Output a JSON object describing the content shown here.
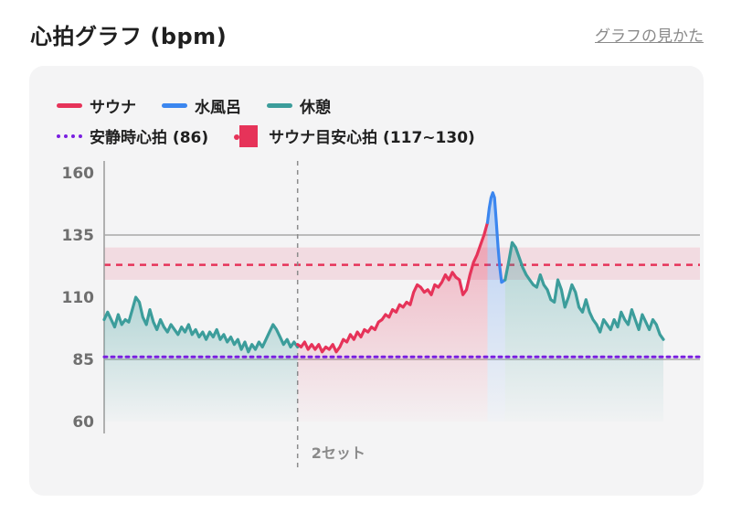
{
  "header": {
    "title": "心拍グラフ (bpm)",
    "help_link": "グラフの見かた"
  },
  "colors": {
    "sauna": "#e63359",
    "cold_bath": "#3b86ef",
    "rest": "#3c9d9b",
    "resting_hr": "#7a1fe0",
    "target_band": "#e63359"
  },
  "legend": {
    "sauna": "サウナ",
    "cold_bath": "水風呂",
    "rest": "休憩",
    "resting_hr": "安静時心拍 (86)",
    "target": "サウナ目安心拍 (117~130)"
  },
  "chart_data": {
    "type": "line",
    "y_ticks": [
      "160",
      "135",
      "110",
      "85",
      "60"
    ],
    "ylim": [
      60,
      160
    ],
    "resting_hr": 86,
    "target_band": [
      117,
      130
    ],
    "target_midline": 123,
    "marker_label": "2セット",
    "series": [
      {
        "name": "休憩",
        "key": "rest",
        "points": [
          [
            0,
            101
          ],
          [
            2,
            104
          ],
          [
            4,
            101
          ],
          [
            6,
            98
          ],
          [
            8,
            103
          ],
          [
            10,
            99
          ],
          [
            12,
            101
          ],
          [
            14,
            100
          ],
          [
            16,
            105
          ],
          [
            18,
            110
          ],
          [
            20,
            108
          ],
          [
            22,
            102
          ],
          [
            24,
            99
          ],
          [
            26,
            105
          ],
          [
            28,
            100
          ],
          [
            30,
            97
          ],
          [
            32,
            101
          ],
          [
            34,
            98
          ],
          [
            36,
            96
          ],
          [
            38,
            99
          ],
          [
            40,
            97
          ],
          [
            42,
            95
          ],
          [
            44,
            98
          ],
          [
            46,
            96
          ],
          [
            48,
            99
          ],
          [
            50,
            95
          ],
          [
            52,
            97
          ],
          [
            54,
            94
          ],
          [
            56,
            96
          ],
          [
            58,
            93
          ],
          [
            60,
            96
          ],
          [
            62,
            94
          ],
          [
            64,
            97
          ],
          [
            66,
            93
          ],
          [
            68,
            95
          ],
          [
            70,
            92
          ],
          [
            72,
            94
          ],
          [
            74,
            91
          ],
          [
            76,
            93
          ],
          [
            78,
            89
          ],
          [
            80,
            92
          ],
          [
            82,
            88
          ],
          [
            84,
            91
          ],
          [
            86,
            89
          ],
          [
            88,
            92
          ],
          [
            90,
            90
          ],
          [
            92,
            93
          ],
          [
            94,
            96
          ],
          [
            96,
            99
          ],
          [
            98,
            97
          ],
          [
            100,
            94
          ],
          [
            102,
            91
          ],
          [
            104,
            93
          ],
          [
            106,
            90
          ],
          [
            108,
            92
          ],
          [
            110,
            90
          ]
        ]
      },
      {
        "name": "サウナ",
        "key": "sauna",
        "points": [
          [
            110,
            91
          ],
          [
            112,
            90
          ],
          [
            114,
            92
          ],
          [
            116,
            89
          ],
          [
            118,
            91
          ],
          [
            120,
            89
          ],
          [
            122,
            91
          ],
          [
            124,
            88
          ],
          [
            126,
            90
          ],
          [
            128,
            89
          ],
          [
            130,
            91
          ],
          [
            132,
            88
          ],
          [
            134,
            90
          ],
          [
            136,
            93
          ],
          [
            138,
            92
          ],
          [
            140,
            95
          ],
          [
            142,
            93
          ],
          [
            144,
            96
          ],
          [
            146,
            94
          ],
          [
            148,
            97
          ],
          [
            150,
            96
          ],
          [
            152,
            98
          ],
          [
            154,
            97
          ],
          [
            156,
            100
          ],
          [
            158,
            101
          ],
          [
            160,
            103
          ],
          [
            162,
            102
          ],
          [
            164,
            105
          ],
          [
            166,
            104
          ],
          [
            168,
            107
          ],
          [
            170,
            106
          ],
          [
            172,
            108
          ],
          [
            174,
            107
          ],
          [
            176,
            112
          ],
          [
            178,
            115
          ],
          [
            180,
            114
          ],
          [
            182,
            112
          ],
          [
            184,
            113
          ],
          [
            186,
            111
          ],
          [
            188,
            115
          ],
          [
            190,
            114
          ],
          [
            192,
            116
          ],
          [
            194,
            119
          ],
          [
            196,
            117
          ],
          [
            198,
            120
          ],
          [
            200,
            118
          ],
          [
            202,
            117
          ],
          [
            204,
            111
          ],
          [
            206,
            113
          ],
          [
            208,
            119
          ],
          [
            210,
            124
          ],
          [
            212,
            127
          ],
          [
            214,
            131
          ],
          [
            216,
            135
          ],
          [
            218,
            140
          ]
        ]
      },
      {
        "name": "水風呂",
        "key": "cold_bath",
        "points": [
          [
            218,
            140
          ],
          [
            219,
            146
          ],
          [
            220,
            150
          ],
          [
            221,
            152
          ],
          [
            222,
            150
          ],
          [
            223,
            140
          ],
          [
            224,
            130
          ],
          [
            225,
            122
          ],
          [
            226,
            116
          ],
          [
            228,
            117
          ]
        ]
      },
      {
        "name": "休憩",
        "key": "rest",
        "points": [
          [
            228,
            117
          ],
          [
            230,
            124
          ],
          [
            232,
            132
          ],
          [
            234,
            130
          ],
          [
            236,
            126
          ],
          [
            238,
            122
          ],
          [
            240,
            119
          ],
          [
            242,
            117
          ],
          [
            244,
            115
          ],
          [
            246,
            114
          ],
          [
            248,
            119
          ],
          [
            250,
            115
          ],
          [
            252,
            113
          ],
          [
            254,
            109
          ],
          [
            256,
            108
          ],
          [
            258,
            117
          ],
          [
            260,
            113
          ],
          [
            262,
            106
          ],
          [
            264,
            110
          ],
          [
            266,
            115
          ],
          [
            268,
            112
          ],
          [
            270,
            106
          ],
          [
            272,
            104
          ],
          [
            274,
            109
          ],
          [
            276,
            104
          ],
          [
            278,
            101
          ],
          [
            280,
            99
          ],
          [
            282,
            96
          ],
          [
            284,
            101
          ],
          [
            286,
            99
          ],
          [
            288,
            97
          ],
          [
            290,
            101
          ],
          [
            292,
            98
          ],
          [
            294,
            104
          ],
          [
            296,
            101
          ],
          [
            298,
            99
          ],
          [
            300,
            105
          ],
          [
            302,
            101
          ],
          [
            304,
            97
          ],
          [
            306,
            103
          ],
          [
            308,
            100
          ],
          [
            310,
            97
          ],
          [
            312,
            101
          ],
          [
            314,
            99
          ],
          [
            316,
            95
          ],
          [
            318,
            93
          ]
        ]
      }
    ],
    "x_range": [
      0,
      318
    ],
    "marker_x": 110
  }
}
